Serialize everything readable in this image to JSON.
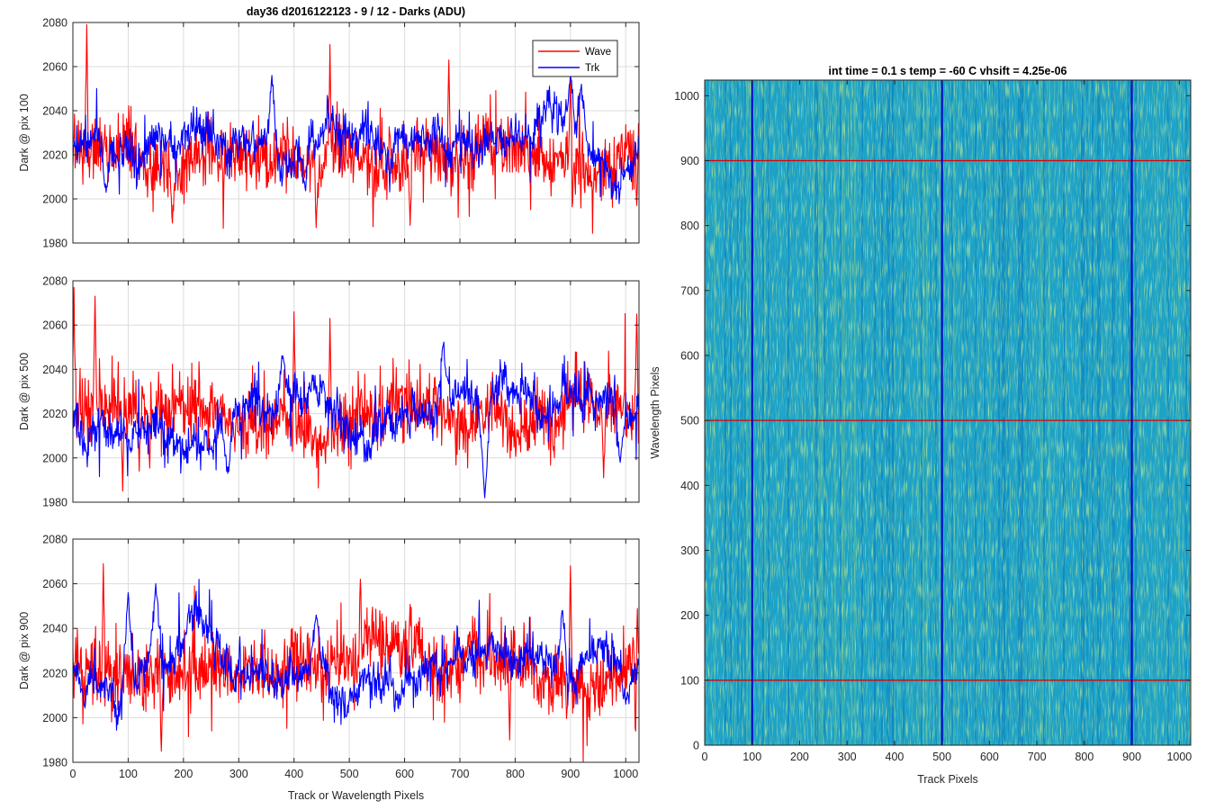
{
  "figure": {
    "suptitle": "day36 d2016122123 - 9 / 12 - Darks (ADU)"
  },
  "chart_data": [
    {
      "type": "line",
      "panel": "dark-pix-100",
      "title": "",
      "xlabel": "",
      "ylabel": "Dark @ pix 100",
      "xlim": [
        0,
        1024
      ],
      "ylim": [
        1980,
        2080
      ],
      "xticks": [
        0,
        100,
        200,
        300,
        400,
        500,
        600,
        700,
        800,
        900,
        1000
      ],
      "xticklabels_visible": false,
      "yticks": [
        1980,
        2000,
        2020,
        2040,
        2060,
        2080
      ],
      "grid": true,
      "legend": {
        "placement": "top-right",
        "entries": [
          "Wave",
          "Trk"
        ]
      },
      "series": [
        {
          "name": "Wave",
          "color": "#ff0000",
          "mean": 2021,
          "noise_sd": 9,
          "n_points": 1024,
          "notable_peaks": [
            [
              25,
              2079
            ],
            [
              465,
              2070
            ],
            [
              900,
              2064
            ],
            [
              680,
              2063
            ]
          ],
          "notable_dips": [
            [
              180,
              1989
            ],
            [
              440,
              1987
            ],
            [
              610,
              1988
            ],
            [
              1020,
              1997
            ]
          ]
        },
        {
          "name": "Trk",
          "color": "#0000ff",
          "mean": 2022,
          "noise_sd": 7,
          "n_points": 1024,
          "notable_peaks": [
            [
              360,
              2056
            ],
            [
              900,
              2057
            ],
            [
              920,
              2052
            ]
          ],
          "notable_dips": [
            [
              60,
              2003
            ],
            [
              420,
              2005
            ]
          ]
        }
      ]
    },
    {
      "type": "line",
      "panel": "dark-pix-500",
      "title": "",
      "xlabel": "",
      "ylabel": "Dark @ pix 500",
      "xlim": [
        0,
        1024
      ],
      "ylim": [
        1980,
        2080
      ],
      "xticks": [
        0,
        100,
        200,
        300,
        400,
        500,
        600,
        700,
        800,
        900,
        1000
      ],
      "xticklabels_visible": false,
      "yticks": [
        1980,
        2000,
        2020,
        2040,
        2060,
        2080
      ],
      "grid": true,
      "series": [
        {
          "name": "Wave",
          "color": "#ff0000",
          "mean": 2021,
          "noise_sd": 9,
          "n_points": 1024,
          "notable_peaks": [
            [
              2,
              2077
            ],
            [
              40,
              2073
            ],
            [
              400,
              2066
            ],
            [
              465,
              2063
            ],
            [
              1020,
              2065
            ]
          ],
          "notable_dips": [
            [
              90,
              1985
            ],
            [
              120,
              1994
            ],
            [
              960,
              1991
            ]
          ]
        },
        {
          "name": "Trk",
          "color": "#0000ff",
          "mean": 2020,
          "noise_sd": 7,
          "n_points": 1024,
          "notable_peaks": [
            [
              670,
              2051
            ],
            [
              380,
              2046
            ]
          ],
          "notable_dips": [
            [
              745,
              1982
            ],
            [
              280,
              1993
            ],
            [
              990,
              1998
            ]
          ]
        }
      ]
    },
    {
      "type": "line",
      "panel": "dark-pix-900",
      "title": "",
      "xlabel": "Track or Wavelength Pixels",
      "ylabel": "Dark @ pix 900",
      "xlim": [
        0,
        1024
      ],
      "ylim": [
        1980,
        2080
      ],
      "xticks": [
        0,
        100,
        200,
        300,
        400,
        500,
        600,
        700,
        800,
        900,
        1000
      ],
      "xticklabels_visible": true,
      "yticks": [
        1980,
        2000,
        2020,
        2040,
        2060,
        2080
      ],
      "grid": true,
      "series": [
        {
          "name": "Wave",
          "color": "#ff0000",
          "mean": 2021,
          "noise_sd": 9,
          "n_points": 1024,
          "notable_peaks": [
            [
              55,
              2069
            ],
            [
              900,
              2068
            ],
            [
              1020,
              2060
            ],
            [
              520,
              2062
            ]
          ],
          "notable_dips": [
            [
              160,
              1985
            ],
            [
              790,
              1990
            ],
            [
              1018,
              1994
            ]
          ]
        },
        {
          "name": "Trk",
          "color": "#0000ff",
          "mean": 2022,
          "noise_sd": 7,
          "n_points": 1024,
          "notable_peaks": [
            [
              100,
              2056
            ],
            [
              150,
              2060
            ],
            [
              440,
              2046
            ],
            [
              885,
              2048
            ]
          ],
          "notable_dips": [
            [
              20,
              2006
            ],
            [
              1000,
              2006
            ]
          ]
        }
      ]
    },
    {
      "type": "heatmap",
      "panel": "dark-frame-image",
      "title": "int time = 0.1 s   temp = -60 C   vhsift = 4.25e-06",
      "xlabel": "Track Pixels",
      "ylabel": "Wavelength Pixels",
      "xlim": [
        0,
        1024
      ],
      "ylim": [
        0,
        1024
      ],
      "xticks": [
        0,
        100,
        200,
        300,
        400,
        500,
        600,
        700,
        800,
        900,
        1000
      ],
      "yticks": [
        0,
        100,
        200,
        300,
        400,
        500,
        600,
        700,
        800,
        900,
        1000
      ],
      "colormap": [
        "#0072bd",
        "#1fa1c6",
        "#2fb0b4",
        "#6fc58a",
        "#bcd154"
      ],
      "dominant_color": "#1fa1c6",
      "grid": false,
      "overlays": {
        "vertical_lines": {
          "color": "#0000cc",
          "x": [
            100,
            500,
            900
          ]
        },
        "horizontal_lines": {
          "color": "#e00000",
          "y": [
            100,
            500,
            900
          ]
        }
      }
    }
  ]
}
